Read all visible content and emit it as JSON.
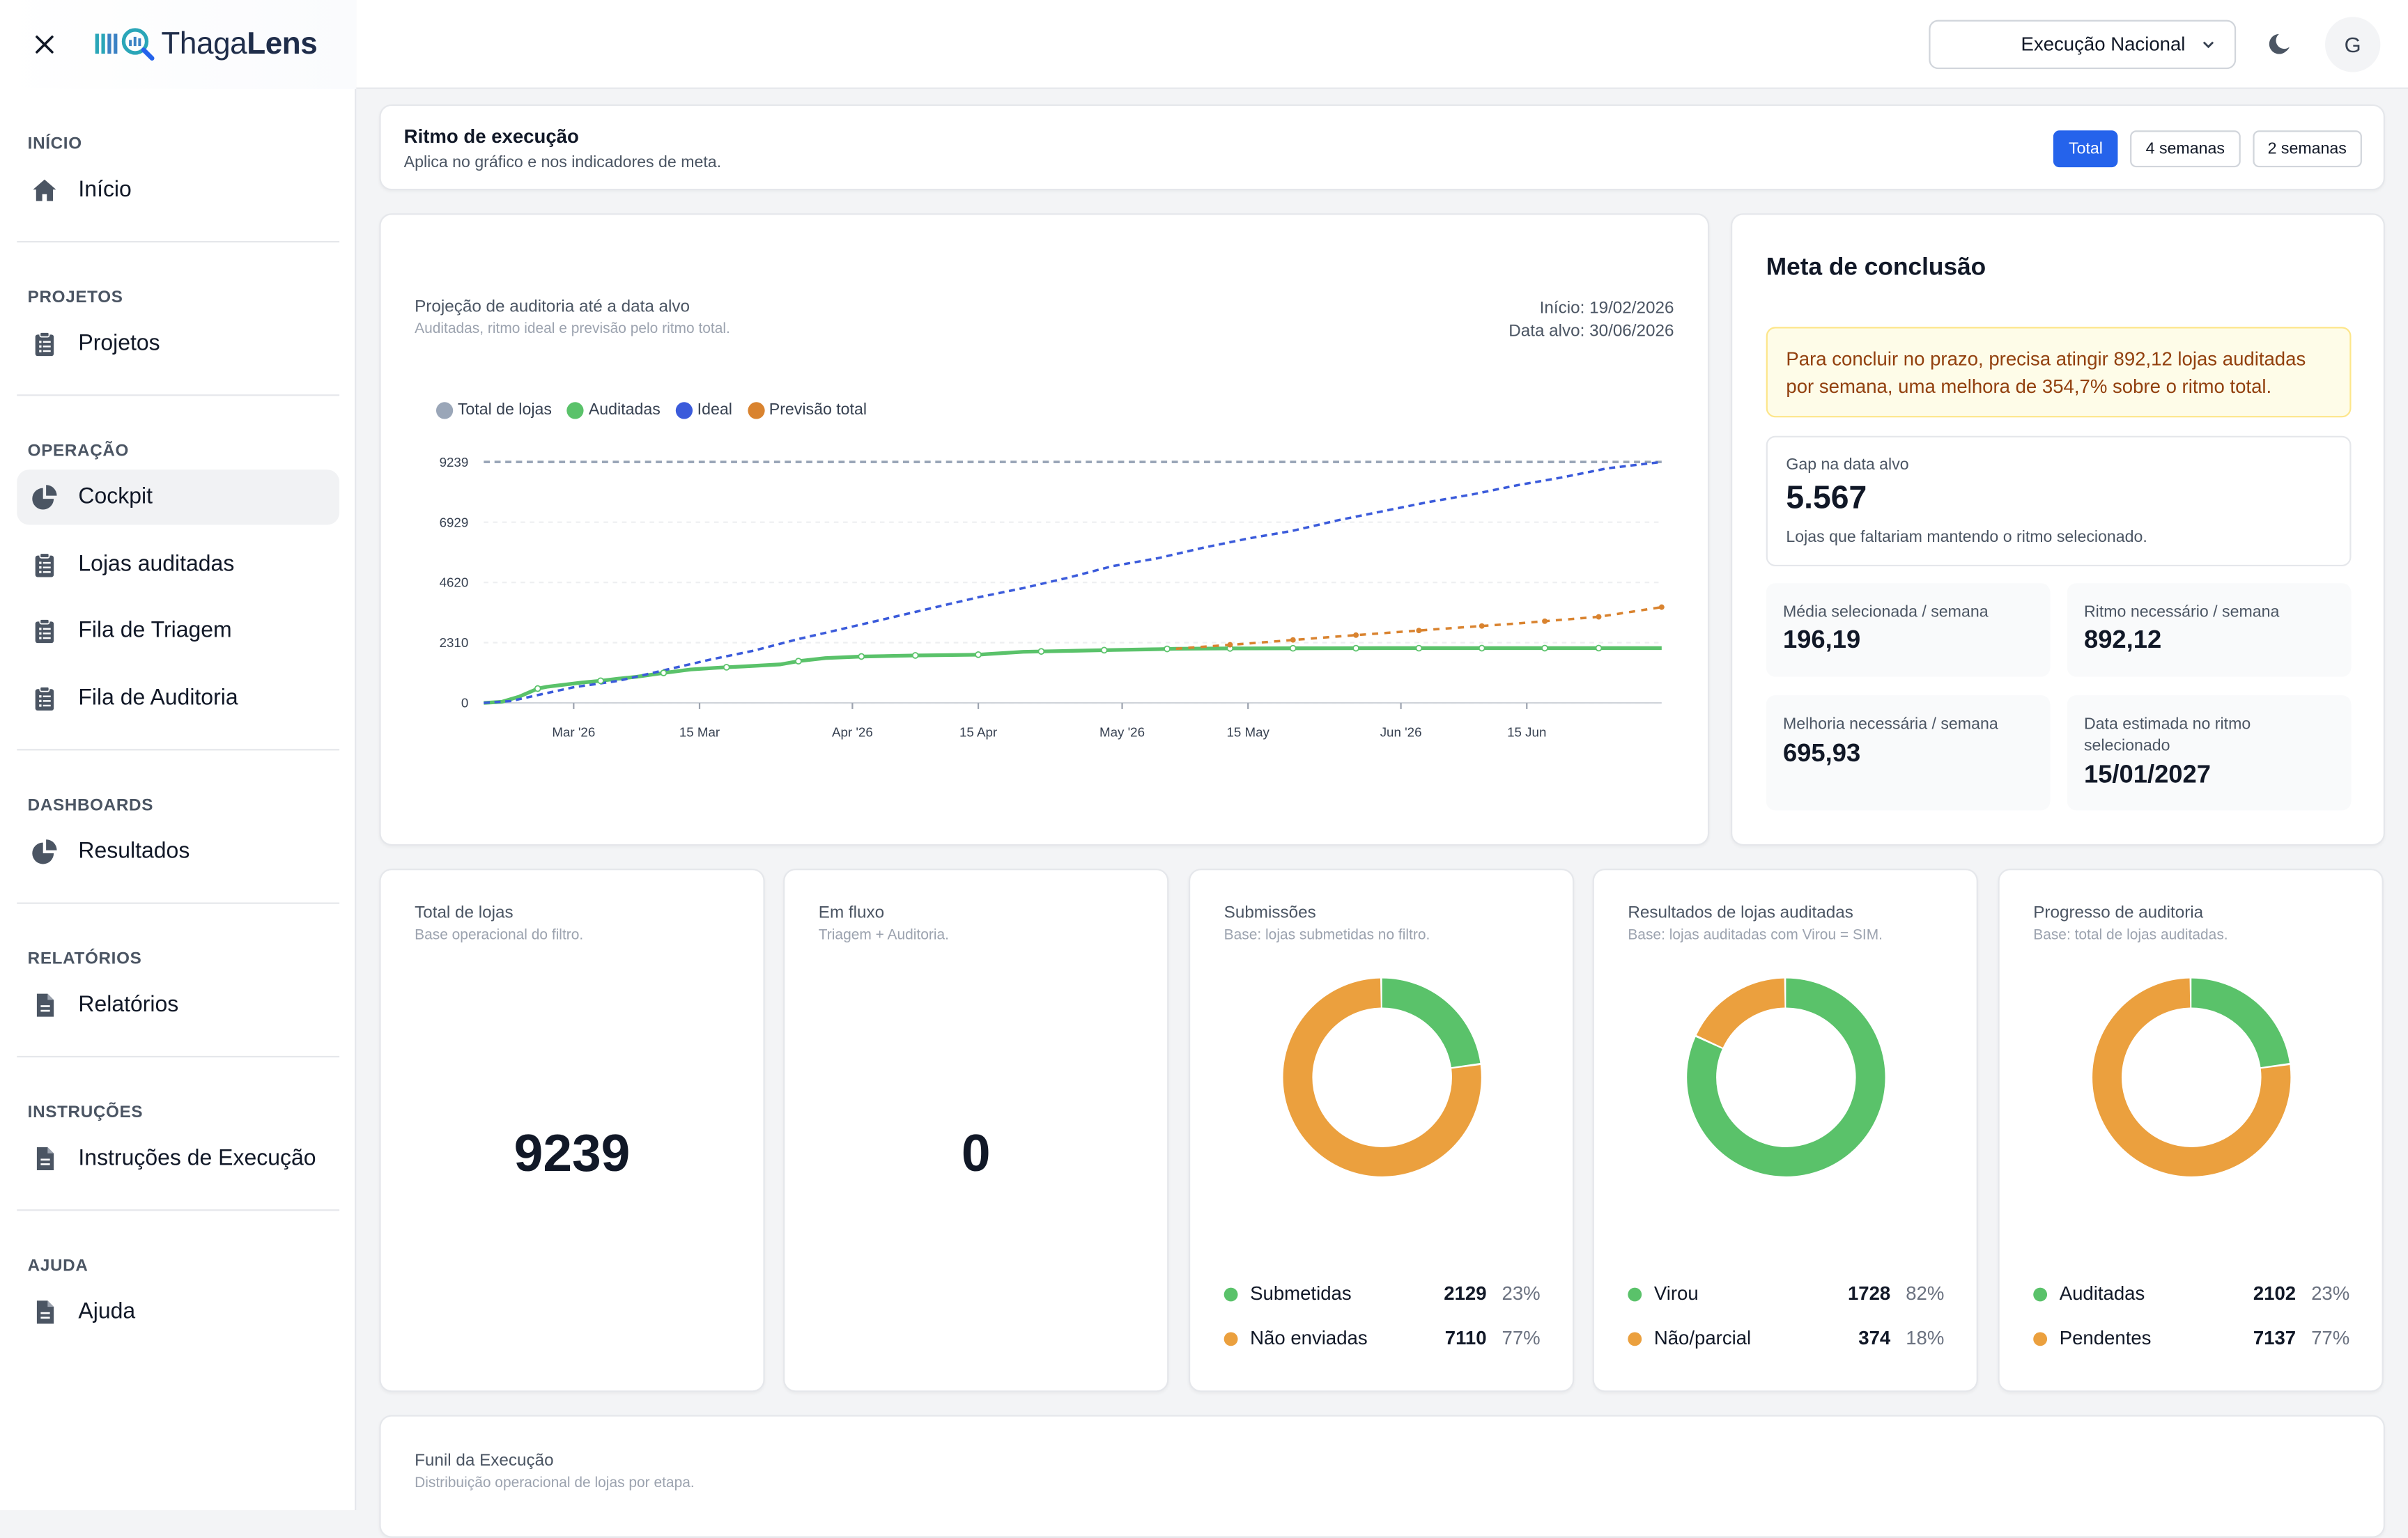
{
  "app": {
    "logo_light": "Thaga",
    "logo_bold": "Lens",
    "colors": {
      "accent": "#2563eb",
      "green": "#5ac26a",
      "orange": "#eba03e",
      "blue": "#3b5bdb",
      "gray": "#9aa6b8"
    }
  },
  "sidebar": {
    "sections": [
      {
        "title": "INÍCIO",
        "items": [
          {
            "label": "Início",
            "icon": "home-icon",
            "active": false
          }
        ]
      },
      {
        "title": "PROJETOS",
        "items": [
          {
            "label": "Projetos",
            "icon": "clipboard-icon",
            "active": false
          }
        ]
      },
      {
        "title": "OPERAÇÃO",
        "items": [
          {
            "label": "Cockpit",
            "icon": "pie-chart-icon",
            "active": true
          },
          {
            "label": "Lojas auditadas",
            "icon": "clipboard-icon",
            "active": false
          },
          {
            "label": "Fila de Triagem",
            "icon": "clipboard-icon",
            "active": false
          },
          {
            "label": "Fila de Auditoria",
            "icon": "clipboard-icon",
            "active": false
          }
        ]
      },
      {
        "title": "DASHBOARDS",
        "items": [
          {
            "label": "Resultados",
            "icon": "pie-chart-icon",
            "active": false
          }
        ]
      },
      {
        "title": "RELATÓRIOS",
        "items": [
          {
            "label": "Relatórios",
            "icon": "document-icon",
            "active": false
          }
        ]
      },
      {
        "title": "INSTRUÇÕES",
        "items": [
          {
            "label": "Instruções de Execução",
            "icon": "document-icon",
            "active": false
          }
        ]
      },
      {
        "title": "AJUDA",
        "items": [
          {
            "label": "Ajuda",
            "icon": "document-icon",
            "active": false
          }
        ]
      }
    ]
  },
  "topbar": {
    "scope_select": "Execução Nacional",
    "avatar_initial": "G"
  },
  "pace": {
    "title": "Ritmo de execução",
    "subtitle": "Aplica no gráfico e nos indicadores de meta.",
    "options": [
      {
        "label": "Total",
        "selected": true
      },
      {
        "label": "4 semanas",
        "selected": false
      },
      {
        "label": "2 semanas",
        "selected": false
      }
    ]
  },
  "projection": {
    "title": "Projeção de auditoria até a data alvo",
    "subtitle": "Auditadas, ritmo ideal e previsão pelo ritmo total.",
    "start_label": "Início: 19/02/2026",
    "target_label": "Data alvo: 30/06/2026"
  },
  "chart_data": {
    "type": "line",
    "x_unit": "days from 19/02/2026",
    "x_ticks": [
      {
        "label": "Mar '26",
        "x": 10
      },
      {
        "label": "15 Mar",
        "x": 24
      },
      {
        "label": "Apr '26",
        "x": 41
      },
      {
        "label": "15 Apr",
        "x": 55
      },
      {
        "label": "May '26",
        "x": 71
      },
      {
        "label": "15 May",
        "x": 85
      },
      {
        "label": "Jun '26",
        "x": 102
      },
      {
        "label": "15 Jun",
        "x": 116
      }
    ],
    "y_ticks": [
      0,
      2310,
      4620,
      6929,
      9239
    ],
    "ylim": [
      0,
      9239
    ],
    "xlim": [
      0,
      131
    ],
    "legend": [
      "Total de lojas",
      "Auditadas",
      "Ideal",
      "Previsão total"
    ],
    "series": [
      {
        "name": "Total de lojas",
        "color": "#9aa6b8",
        "style": "dashed",
        "points": [
          [
            0,
            9239
          ],
          [
            131,
            9239
          ]
        ]
      },
      {
        "name": "Auditadas",
        "color": "#5ac26a",
        "style": "solid",
        "points": [
          [
            0,
            0
          ],
          [
            2,
            40
          ],
          [
            4,
            250
          ],
          [
            6,
            550
          ],
          [
            7,
            620
          ],
          [
            9,
            700
          ],
          [
            11,
            780
          ],
          [
            13,
            850
          ],
          [
            15,
            930
          ],
          [
            17,
            1000
          ],
          [
            20,
            1150
          ],
          [
            23,
            1280
          ],
          [
            26,
            1350
          ],
          [
            29,
            1400
          ],
          [
            33,
            1480
          ],
          [
            35,
            1600
          ],
          [
            38,
            1720
          ],
          [
            42,
            1780
          ],
          [
            48,
            1820
          ],
          [
            55,
            1850
          ],
          [
            56,
            1870
          ],
          [
            60,
            1960
          ],
          [
            66,
            2000
          ],
          [
            70,
            2030
          ],
          [
            75,
            2060
          ],
          [
            77,
            2080
          ],
          [
            83,
            2090
          ],
          [
            90,
            2095
          ],
          [
            100,
            2098
          ],
          [
            115,
            2100
          ],
          [
            131,
            2102
          ]
        ]
      },
      {
        "name": "Ideal",
        "color": "#3b5bdb",
        "style": "dashed",
        "points": [
          [
            0,
            0
          ],
          [
            3,
            70
          ],
          [
            6,
            300
          ],
          [
            10,
            600
          ],
          [
            15,
            850
          ],
          [
            20,
            1250
          ],
          [
            25,
            1650
          ],
          [
            30,
            2000
          ],
          [
            35,
            2450
          ],
          [
            40,
            2850
          ],
          [
            45,
            3250
          ],
          [
            50,
            3650
          ],
          [
            55,
            4050
          ],
          [
            60,
            4400
          ],
          [
            65,
            4800
          ],
          [
            70,
            5250
          ],
          [
            75,
            5550
          ],
          [
            80,
            5950
          ],
          [
            85,
            6300
          ],
          [
            90,
            6600
          ],
          [
            95,
            7000
          ],
          [
            100,
            7350
          ],
          [
            105,
            7700
          ],
          [
            110,
            8000
          ],
          [
            115,
            8350
          ],
          [
            120,
            8650
          ],
          [
            125,
            9000
          ],
          [
            131,
            9239
          ]
        ]
      },
      {
        "name": "Previsão total",
        "color": "#d9832f",
        "style": "dashed",
        "points": [
          [
            77,
            2080
          ],
          [
            85,
            2280
          ],
          [
            95,
            2550
          ],
          [
            105,
            2800
          ],
          [
            115,
            3050
          ],
          [
            124,
            3300
          ],
          [
            131,
            3672
          ]
        ]
      }
    ]
  },
  "meta": {
    "title": "Meta de conclusão",
    "alert": "Para concluir no prazo, precisa atingir 892,12 lojas auditadas por semana, uma melhora de 354,7% sobre o ritmo total.",
    "gap_label": "Gap na data alvo",
    "gap_value": "5.567",
    "gap_sub": "Lojas que faltariam mantendo o ritmo selecionado.",
    "media_label": "Média selecionada / semana",
    "media_value": "196,19",
    "ritmo_label": "Ritmo necessário / semana",
    "ritmo_value": "892,12",
    "melhoria_label": "Melhoria necessária / semana",
    "melhoria_value": "695,93",
    "data_label": "Data estimada no ritmo selecionado",
    "data_value": "15/01/2027"
  },
  "kpis": {
    "total": {
      "title": "Total de lojas",
      "subtitle": "Base operacional do filtro.",
      "value": "9239"
    },
    "fluxo": {
      "title": "Em fluxo",
      "subtitle": "Triagem + Auditoria.",
      "value": "0"
    }
  },
  "donuts": [
    {
      "title": "Submissões",
      "subtitle": "Base: lojas submetidas no filtro.",
      "rows": [
        {
          "label": "Submetidas",
          "count": "2129",
          "pct": "23%",
          "fraction": 0.23,
          "color": "#5ac26a"
        },
        {
          "label": "Não enviadas",
          "count": "7110",
          "pct": "77%",
          "fraction": 0.77,
          "color": "#eba03e"
        }
      ]
    },
    {
      "title": "Resultados de lojas auditadas",
      "subtitle": "Base: lojas auditadas com Virou = SIM.",
      "rows": [
        {
          "label": "Virou",
          "count": "1728",
          "pct": "82%",
          "fraction": 0.82,
          "color": "#5ac26a"
        },
        {
          "label": "Não/parcial",
          "count": "374",
          "pct": "18%",
          "fraction": 0.18,
          "color": "#eba03e"
        }
      ]
    },
    {
      "title": "Progresso de auditoria",
      "subtitle": "Base: total de lojas auditadas.",
      "rows": [
        {
          "label": "Auditadas",
          "count": "2102",
          "pct": "23%",
          "fraction": 0.23,
          "color": "#5ac26a"
        },
        {
          "label": "Pendentes",
          "count": "7137",
          "pct": "77%",
          "fraction": 0.77,
          "color": "#eba03e"
        }
      ]
    }
  ],
  "funnel": {
    "title": "Funil da Execução",
    "subtitle": "Distribuição operacional de lojas por etapa."
  }
}
